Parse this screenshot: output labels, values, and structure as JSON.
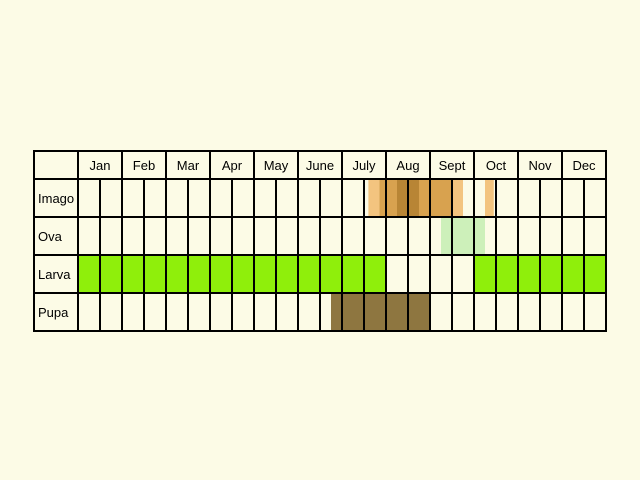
{
  "months": [
    "Jan",
    "Feb",
    "Mar",
    "Apr",
    "May",
    "June",
    "July",
    "Aug",
    "Sept",
    "Oct",
    "Nov",
    "Dec"
  ],
  "colors": {
    "background": "#fcfbe6",
    "cell": "#fcfbe6",
    "grid": "#000000"
  },
  "stages": [
    {
      "label": "Imago",
      "periods": [
        {
          "start": 6.6,
          "end": 6.85,
          "color": "#f3c47f"
        },
        {
          "start": 6.85,
          "end": 7.25,
          "color": "#d8a24f"
        },
        {
          "start": 7.25,
          "end": 7.75,
          "color": "#b88535"
        },
        {
          "start": 7.75,
          "end": 8.5,
          "color": "#d8a24f"
        },
        {
          "start": 8.5,
          "end": 8.75,
          "color": "#f3c47f"
        },
        {
          "start": 9.25,
          "end": 9.45,
          "color": "#f3c47f"
        }
      ]
    },
    {
      "label": "Ova",
      "periods": [
        {
          "start": 8.25,
          "end": 9.25,
          "color": "#cdf0ba"
        }
      ]
    },
    {
      "label": "Larva",
      "periods": [
        {
          "start": 0,
          "end": 7,
          "color": "#8fef0b"
        },
        {
          "start": 9,
          "end": 12,
          "color": "#8fef0b"
        }
      ]
    },
    {
      "label": "Pupa",
      "periods": [
        {
          "start": 5.75,
          "end": 8,
          "color": "#8e7640"
        }
      ]
    }
  ]
}
